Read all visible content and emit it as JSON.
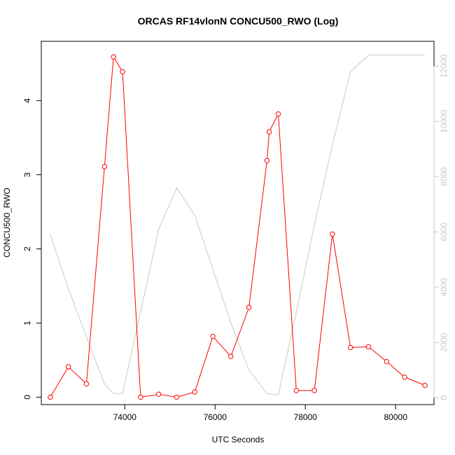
{
  "chart_data": {
    "type": "line",
    "title": "ORCAS RF14vlonN CONCU500_RWO (Log)",
    "xlabel": "UTC Seconds",
    "ylabel": "CONCU500_RWO",
    "xlim": [
      72150,
      80850
    ],
    "ylim": [
      -0.1,
      4.8
    ],
    "y2lim": [
      -250,
      12900
    ],
    "x_ticks": [
      74000,
      76000,
      78000,
      80000
    ],
    "y_ticks": [
      0,
      1,
      2,
      3,
      4
    ],
    "y2_ticks": [
      0,
      2000,
      4000,
      6000,
      8000,
      10000,
      12000
    ],
    "colors": {
      "primary": "#ff0000",
      "secondary": "#c8c8c8"
    },
    "series": [
      {
        "axis": "left",
        "color": "#ff0000",
        "marker": "open-circle",
        "x": [
          72350,
          72750,
          73150,
          73550,
          73750,
          73950,
          74350,
          74750,
          75150,
          75550,
          75950,
          76350,
          76750,
          77150,
          77200,
          77400,
          77800,
          78200,
          78600,
          79000,
          79400,
          79800,
          80200,
          80650
        ],
        "y": [
          0.0,
          0.41,
          0.18,
          3.11,
          4.59,
          4.39,
          0.0,
          0.04,
          0.0,
          0.07,
          0.82,
          0.55,
          1.21,
          3.19,
          3.58,
          3.82,
          0.09,
          0.09,
          2.2,
          0.67,
          0.68,
          0.48,
          0.27,
          0.16
        ]
      },
      {
        "axis": "right",
        "color": "#c8c8c8",
        "marker": "none",
        "x": [
          72350,
          72750,
          73150,
          73550,
          73750,
          73950,
          74350,
          74750,
          75150,
          75550,
          75950,
          76350,
          76750,
          77150,
          77400,
          77800,
          78200,
          78600,
          79000,
          79400,
          79800,
          80200,
          80650
        ],
        "y": [
          5900,
          3950,
          2200,
          500,
          150,
          150,
          3100,
          6100,
          7600,
          6600,
          4650,
          2700,
          1000,
          150,
          100,
          3100,
          6250,
          9150,
          11800,
          12400,
          12400,
          12400,
          12400
        ]
      }
    ]
  }
}
